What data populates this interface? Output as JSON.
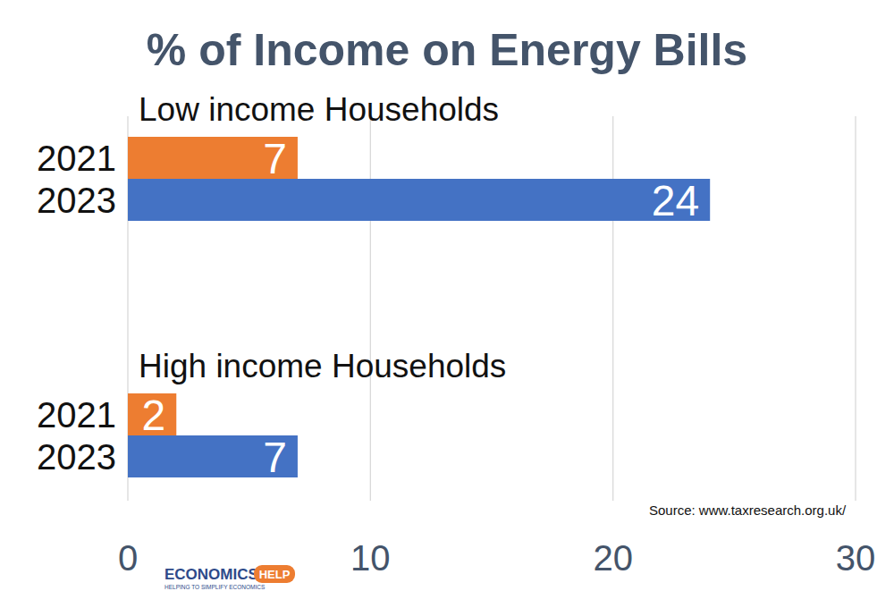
{
  "chart_data": {
    "type": "bar",
    "orientation": "horizontal",
    "title": "% of Income on Energy Bills",
    "categories": [
      "Low income Households",
      "High income Households"
    ],
    "series": [
      {
        "name": "2021",
        "color": "#ed7d31",
        "values": [
          7,
          2
        ]
      },
      {
        "name": "2023",
        "color": "#4472c4",
        "values": [
          24,
          7
        ]
      }
    ],
    "xlim": [
      0,
      30
    ],
    "xticks": [
      0,
      10,
      20,
      30
    ],
    "grid": true,
    "data_labels": true,
    "annotations": [
      "Source: www.taxresearch.org.uk/",
      "ECONOMICS",
      "HELP",
      "HELPING TO SIMPLIFY ECONOMICS"
    ]
  }
}
